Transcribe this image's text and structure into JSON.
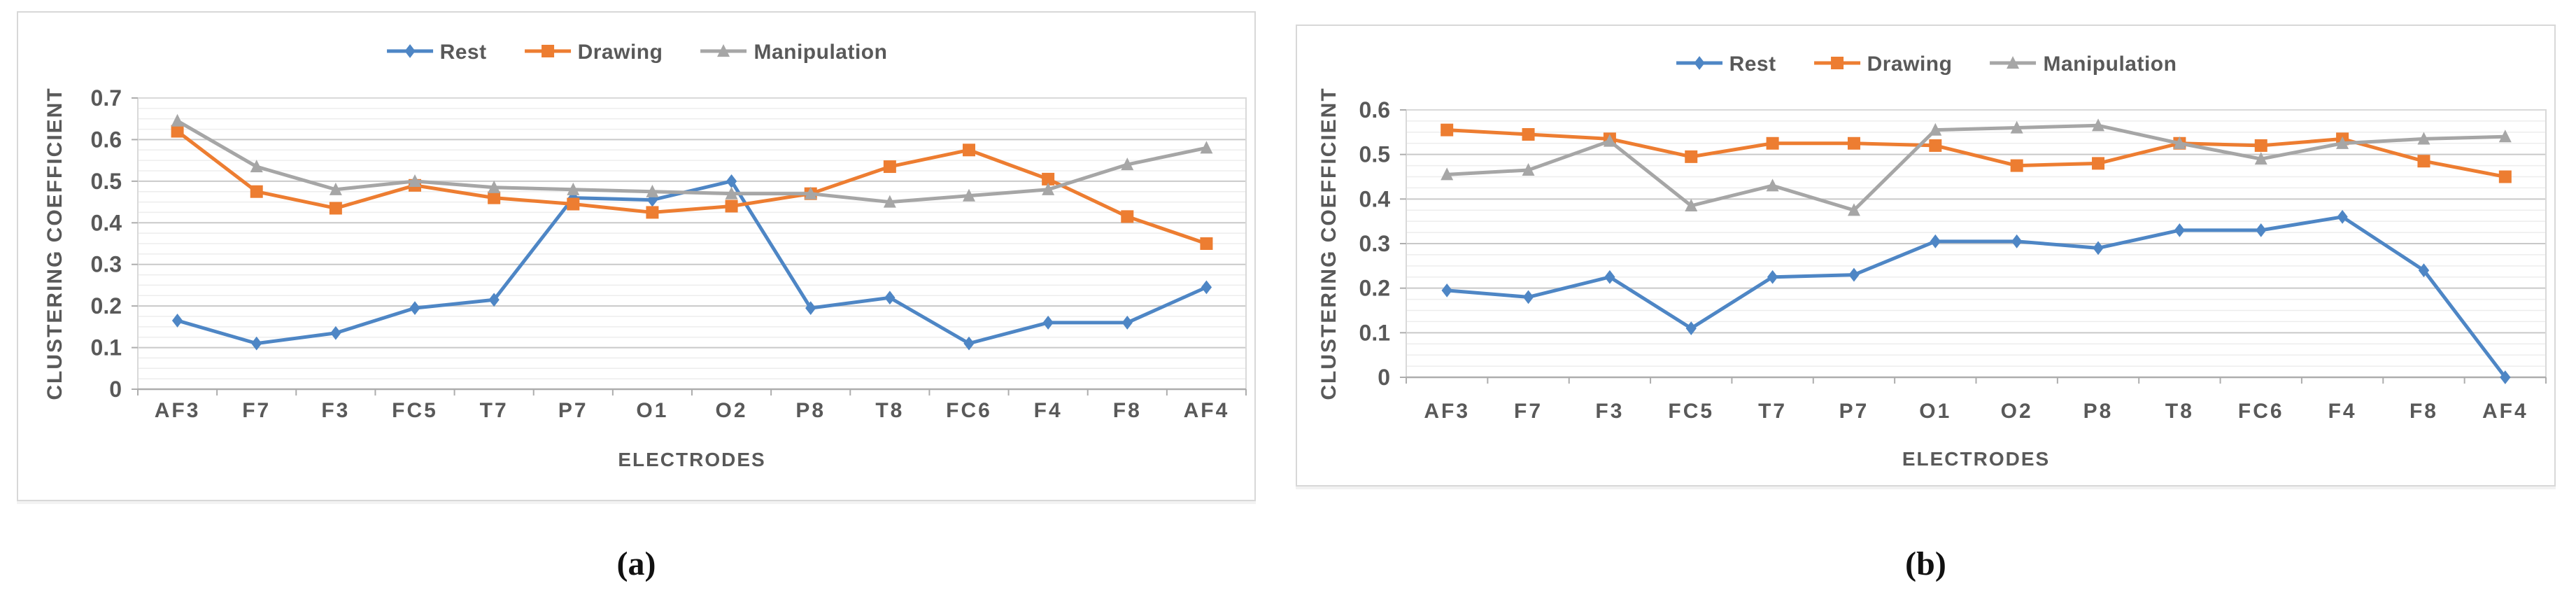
{
  "figure": {
    "caption_a": "(a)",
    "caption_b": "(b)"
  },
  "colors": {
    "rest": "#4E86C5",
    "drawing": "#ED7D31",
    "manipulation": "#A6A6A6",
    "axis_text": "#595959",
    "major_grid": "#C9C9C9",
    "minor_grid": "#EDEDED",
    "plot_border": "#D9D9D9",
    "axis_line": "#ADADAD"
  },
  "chart_data": [
    {
      "id": "a",
      "type": "line",
      "title": "",
      "xlabel": "ELECTRODES",
      "ylabel": "CLUSTERING COEFFICIENT",
      "ylim": [
        0,
        0.7
      ],
      "major_step": 0.1,
      "minor_step": 0.025,
      "grid": true,
      "legend_position": "top-center",
      "ytick_labels": [
        "0",
        "0.1",
        "0.2",
        "0.3",
        "0.4",
        "0.5",
        "0.6",
        "0.7"
      ],
      "categories": [
        "AF3",
        "F7",
        "F3",
        "FC5",
        "T7",
        "P7",
        "O1",
        "O2",
        "P8",
        "T8",
        "FC6",
        "F4",
        "F8",
        "AF4"
      ],
      "series": [
        {
          "name": "Rest",
          "marker": "diamond",
          "color": "#4E86C5",
          "values": [
            0.165,
            0.11,
            0.135,
            0.195,
            0.215,
            0.46,
            0.455,
            0.5,
            0.195,
            0.22,
            0.11,
            0.16,
            0.16,
            0.245
          ]
        },
        {
          "name": "Drawing",
          "marker": "square",
          "color": "#ED7D31",
          "values": [
            0.62,
            0.475,
            0.435,
            0.49,
            0.46,
            0.445,
            0.425,
            0.44,
            0.47,
            0.535,
            0.575,
            0.505,
            0.415,
            0.35
          ]
        },
        {
          "name": "Manipulation",
          "marker": "triangle",
          "color": "#A6A6A6",
          "values": [
            0.645,
            0.535,
            0.48,
            0.5,
            0.485,
            0.48,
            0.475,
            0.47,
            0.47,
            0.45,
            0.465,
            0.48,
            0.54,
            0.58
          ]
        }
      ]
    },
    {
      "id": "b",
      "type": "line",
      "title": "",
      "xlabel": "ELECTRODES",
      "ylabel": "CLUSTERING COEFFICIENT",
      "ylim": [
        0,
        0.6
      ],
      "major_step": 0.1,
      "minor_step": 0.025,
      "grid": true,
      "legend_position": "top-center",
      "ytick_labels": [
        "0",
        "0.1",
        "0.2",
        "0.3",
        "0.4",
        "0.5",
        "0.6"
      ],
      "categories": [
        "AF3",
        "F7",
        "F3",
        "FC5",
        "T7",
        "P7",
        "O1",
        "O2",
        "P8",
        "T8",
        "FC6",
        "F4",
        "F8",
        "AF4"
      ],
      "series": [
        {
          "name": "Rest",
          "marker": "diamond",
          "color": "#4E86C5",
          "values": [
            0.195,
            0.18,
            0.225,
            0.11,
            0.225,
            0.23,
            0.305,
            0.305,
            0.29,
            0.33,
            0.33,
            0.36,
            0.24,
            0
          ]
        },
        {
          "name": "Drawing",
          "marker": "square",
          "color": "#ED7D31",
          "values": [
            0.555,
            0.545,
            0.535,
            0.495,
            0.525,
            0.525,
            0.52,
            0.475,
            0.48,
            0.525,
            0.52,
            0.535,
            0.485,
            0.45
          ]
        },
        {
          "name": "Manipulation",
          "marker": "triangle",
          "color": "#A6A6A6",
          "values": [
            0.455,
            0.465,
            0.53,
            0.385,
            0.43,
            0.375,
            0.555,
            0.56,
            0.565,
            0.525,
            0.49,
            0.525,
            0.535,
            0.54
          ]
        }
      ]
    }
  ]
}
